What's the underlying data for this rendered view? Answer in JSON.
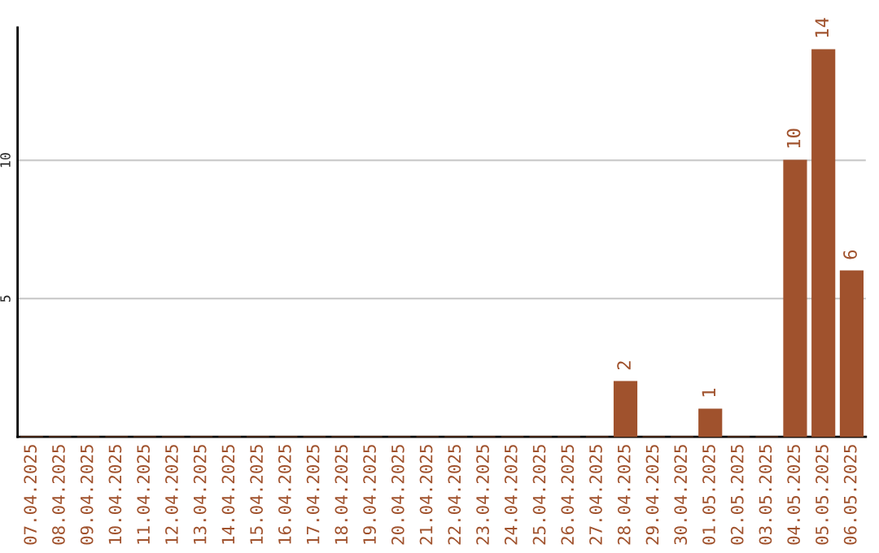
{
  "chart_data": {
    "type": "bar",
    "categories": [
      "07.04.2025",
      "08.04.2025",
      "09.04.2025",
      "10.04.2025",
      "11.04.2025",
      "12.04.2025",
      "13.04.2025",
      "14.04.2025",
      "15.04.2025",
      "16.04.2025",
      "17.04.2025",
      "18.04.2025",
      "19.04.2025",
      "20.04.2025",
      "21.04.2025",
      "22.04.2025",
      "23.04.2025",
      "24.04.2025",
      "25.04.2025",
      "26.04.2025",
      "27.04.2025",
      "28.04.2025",
      "29.04.2025",
      "30.04.2025",
      "01.05.2025",
      "02.05.2025",
      "03.05.2025",
      "04.05.2025",
      "05.05.2025",
      "06.05.2025"
    ],
    "values": [
      0,
      0,
      0,
      0,
      0,
      0,
      0,
      0,
      0,
      0,
      0,
      0,
      0,
      0,
      0,
      0,
      0,
      0,
      0,
      0,
      0,
      2,
      0,
      0,
      1,
      0,
      0,
      10,
      14,
      6
    ],
    "value_labels": [
      null,
      null,
      null,
      null,
      null,
      null,
      null,
      null,
      null,
      null,
      null,
      null,
      null,
      null,
      null,
      null,
      null,
      null,
      null,
      null,
      null,
      "2",
      null,
      null,
      "1",
      null,
      null,
      "10",
      "14",
      "6"
    ],
    "color": "#a0522d",
    "ylim": [
      0,
      14.8
    ],
    "yticks": [
      5,
      10
    ],
    "grid": "y"
  }
}
